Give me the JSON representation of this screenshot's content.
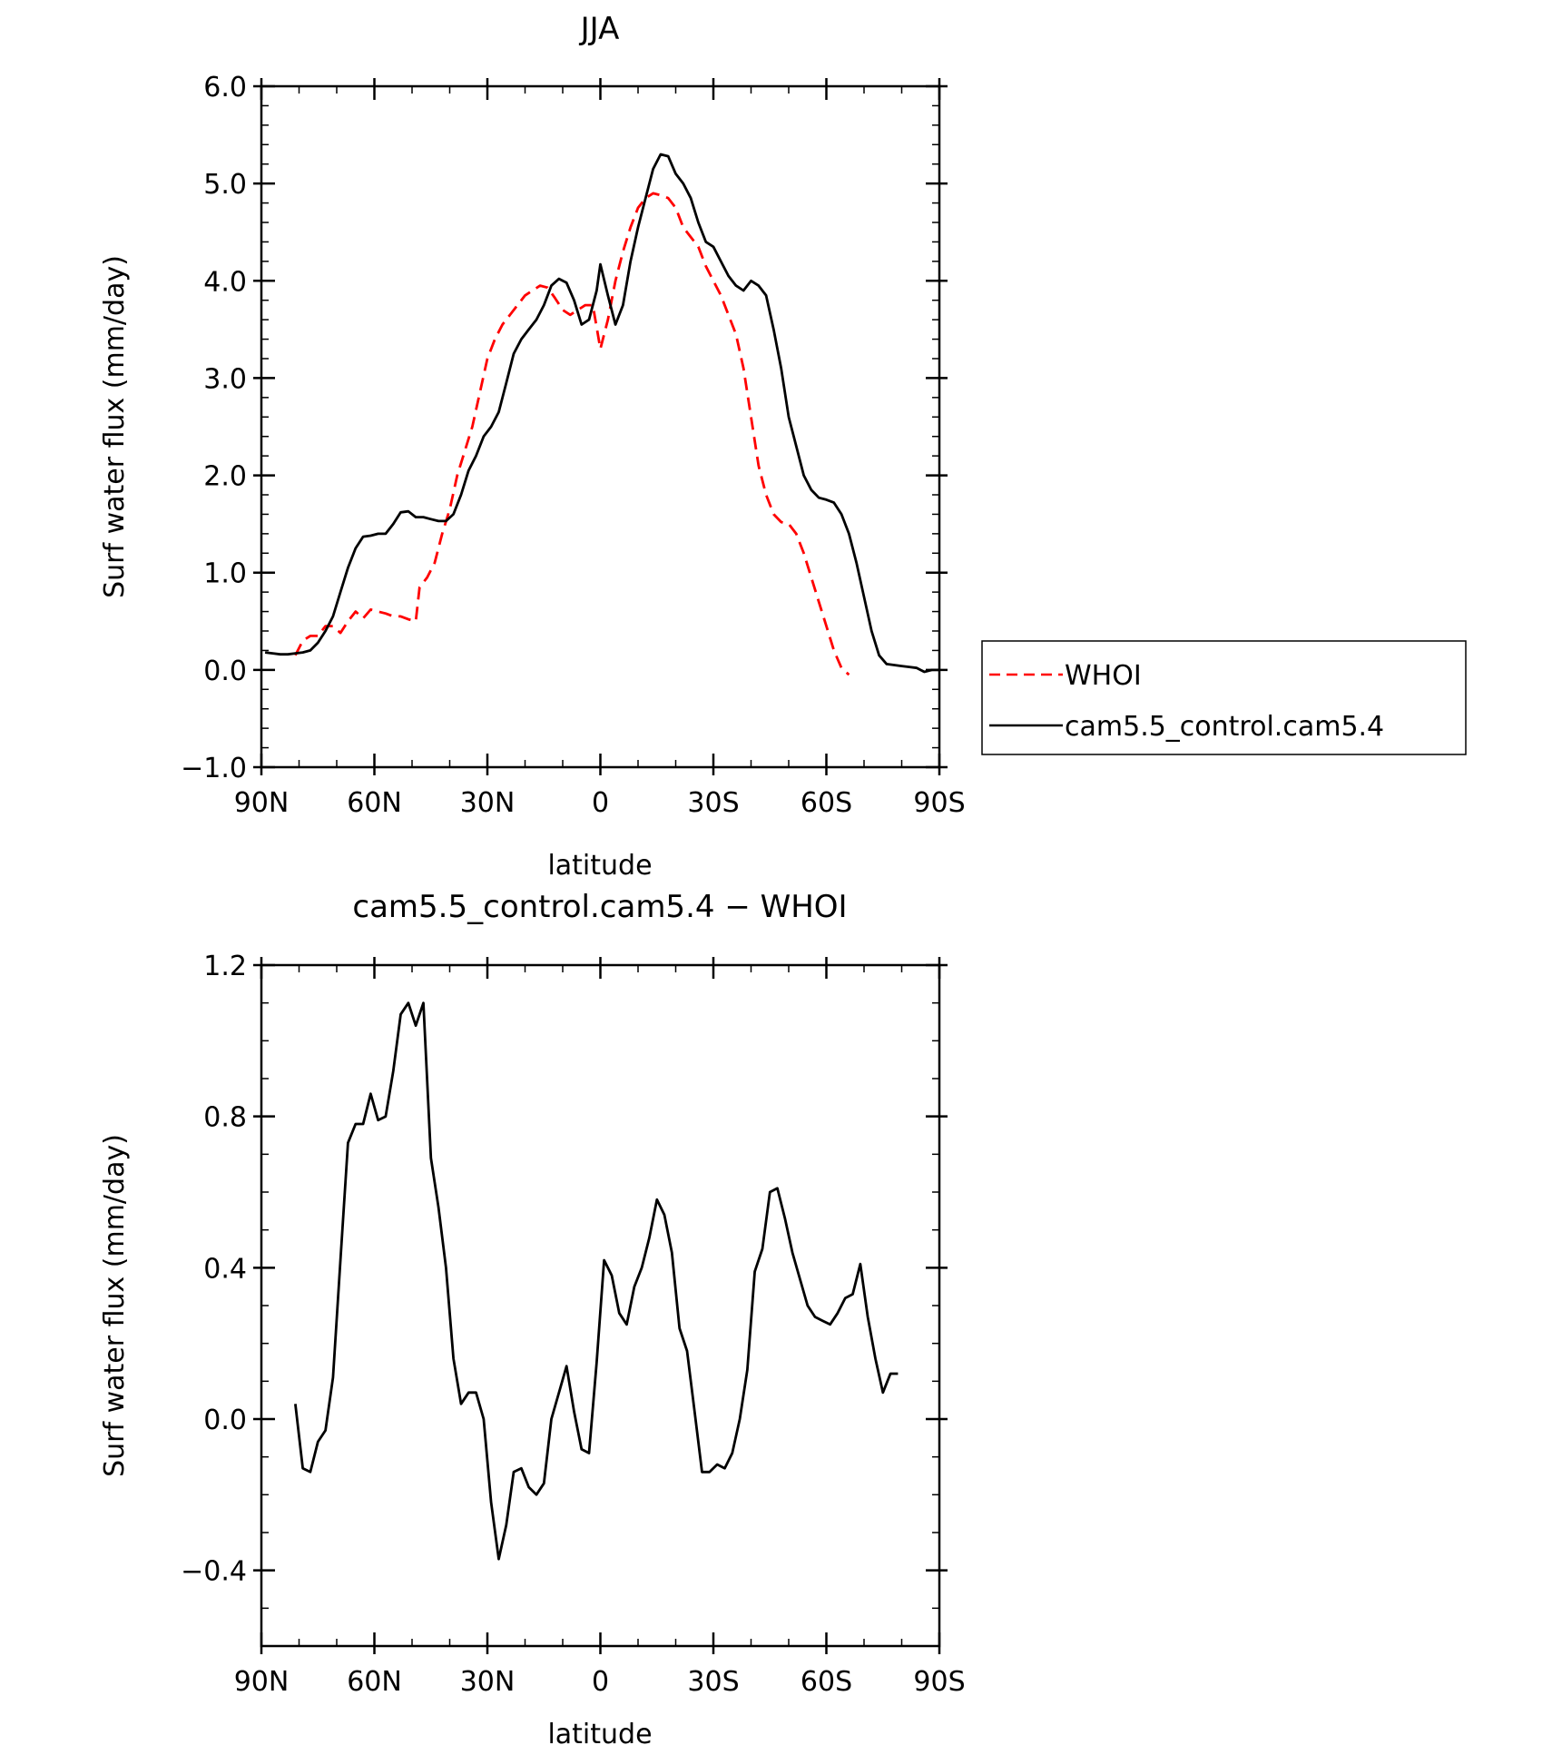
{
  "chart_data": [
    {
      "type": "line",
      "title": "JJA",
      "xlabel": "latitude",
      "ylabel": "Surf water flux (mm/day)",
      "xlim": [
        -90,
        90
      ],
      "ylim": [
        -1.0,
        6.0
      ],
      "x_tick_values": [
        -90,
        -60,
        -30,
        0,
        30,
        60,
        90
      ],
      "x_tick_labels": [
        "90N",
        "60N",
        "30N",
        "0",
        "30S",
        "60S",
        "90S"
      ],
      "y_tick_values": [
        -1.0,
        0.0,
        1.0,
        2.0,
        3.0,
        4.0,
        5.0,
        6.0
      ],
      "y_tick_labels": [
        "−1.0",
        "0.0",
        "1.0",
        "2.0",
        "3.0",
        "4.0",
        "5.0",
        "6.0"
      ],
      "legend_position": "right",
      "series": [
        {
          "name": "WHOI",
          "color": "#ff0000",
          "dash": true,
          "points": [
            [
              -81,
              0.15
            ],
            [
              -79,
              0.3
            ],
            [
              -77,
              0.35
            ],
            [
              -75,
              0.35
            ],
            [
              -73,
              0.45
            ],
            [
              -71,
              0.45
            ],
            [
              -69,
              0.38
            ],
            [
              -67,
              0.5
            ],
            [
              -65,
              0.6
            ],
            [
              -63,
              0.53
            ],
            [
              -61,
              0.62
            ],
            [
              -59,
              0.6
            ],
            [
              -57,
              0.58
            ],
            [
              -55,
              0.55
            ],
            [
              -53,
              0.55
            ],
            [
              -51,
              0.52
            ],
            [
              -49,
              0.5
            ],
            [
              -48,
              0.85
            ],
            [
              -46,
              0.95
            ],
            [
              -44,
              1.1
            ],
            [
              -42,
              1.4
            ],
            [
              -40,
              1.65
            ],
            [
              -38,
              2.0
            ],
            [
              -36,
              2.25
            ],
            [
              -34,
              2.5
            ],
            [
              -32,
              2.85
            ],
            [
              -30,
              3.2
            ],
            [
              -28,
              3.4
            ],
            [
              -26,
              3.55
            ],
            [
              -24,
              3.65
            ],
            [
              -22,
              3.75
            ],
            [
              -20,
              3.85
            ],
            [
              -18,
              3.9
            ],
            [
              -16,
              3.95
            ],
            [
              -14,
              3.93
            ],
            [
              -12,
              3.82
            ],
            [
              -10,
              3.7
            ],
            [
              -8,
              3.65
            ],
            [
              -6,
              3.7
            ],
            [
              -4,
              3.75
            ],
            [
              -2,
              3.75
            ],
            [
              0,
              3.3
            ],
            [
              2,
              3.6
            ],
            [
              4,
              4.0
            ],
            [
              6,
              4.3
            ],
            [
              8,
              4.55
            ],
            [
              10,
              4.75
            ],
            [
              12,
              4.85
            ],
            [
              14,
              4.9
            ],
            [
              16,
              4.88
            ],
            [
              18,
              4.85
            ],
            [
              20,
              4.75
            ],
            [
              22,
              4.55
            ],
            [
              24,
              4.45
            ],
            [
              26,
              4.35
            ],
            [
              28,
              4.15
            ],
            [
              30,
              4.0
            ],
            [
              32,
              3.85
            ],
            [
              34,
              3.65
            ],
            [
              36,
              3.45
            ],
            [
              38,
              3.1
            ],
            [
              40,
              2.6
            ],
            [
              42,
              2.1
            ],
            [
              44,
              1.8
            ],
            [
              46,
              1.6
            ],
            [
              48,
              1.52
            ],
            [
              50,
              1.5
            ],
            [
              52,
              1.4
            ],
            [
              54,
              1.2
            ],
            [
              56,
              0.95
            ],
            [
              58,
              0.7
            ],
            [
              60,
              0.45
            ],
            [
              62,
              0.2
            ],
            [
              64,
              0.02
            ],
            [
              66,
              -0.05
            ]
          ]
        },
        {
          "name": "cam5.5_control.cam5.4",
          "color": "#000000",
          "dash": false,
          "points": [
            [
              -89,
              0.18
            ],
            [
              -87,
              0.17
            ],
            [
              -85,
              0.16
            ],
            [
              -83,
              0.16
            ],
            [
              -81,
              0.17
            ],
            [
              -79,
              0.18
            ],
            [
              -77,
              0.2
            ],
            [
              -75,
              0.28
            ],
            [
              -73,
              0.4
            ],
            [
              -71,
              0.55
            ],
            [
              -69,
              0.8
            ],
            [
              -67,
              1.05
            ],
            [
              -65,
              1.25
            ],
            [
              -63,
              1.37
            ],
            [
              -61,
              1.38
            ],
            [
              -59,
              1.4
            ],
            [
              -57,
              1.4
            ],
            [
              -55,
              1.5
            ],
            [
              -53,
              1.62
            ],
            [
              -51,
              1.63
            ],
            [
              -49,
              1.57
            ],
            [
              -47,
              1.57
            ],
            [
              -45,
              1.55
            ],
            [
              -43,
              1.53
            ],
            [
              -41,
              1.53
            ],
            [
              -39,
              1.6
            ],
            [
              -37,
              1.8
            ],
            [
              -35,
              2.05
            ],
            [
              -33,
              2.2
            ],
            [
              -31,
              2.4
            ],
            [
              -29,
              2.5
            ],
            [
              -27,
              2.65
            ],
            [
              -25,
              2.95
            ],
            [
              -23,
              3.25
            ],
            [
              -21,
              3.4
            ],
            [
              -19,
              3.5
            ],
            [
              -17,
              3.6
            ],
            [
              -15,
              3.75
            ],
            [
              -13,
              3.95
            ],
            [
              -11,
              4.02
            ],
            [
              -9,
              3.98
            ],
            [
              -7,
              3.8
            ],
            [
              -5,
              3.55
            ],
            [
              -3,
              3.6
            ],
            [
              -1,
              3.9
            ],
            [
              0,
              4.17
            ],
            [
              2,
              3.85
            ],
            [
              4,
              3.55
            ],
            [
              6,
              3.75
            ],
            [
              8,
              4.2
            ],
            [
              10,
              4.55
            ],
            [
              12,
              4.85
            ],
            [
              14,
              5.15
            ],
            [
              16,
              5.3
            ],
            [
              18,
              5.28
            ],
            [
              20,
              5.1
            ],
            [
              22,
              5.0
            ],
            [
              24,
              4.85
            ],
            [
              26,
              4.6
            ],
            [
              28,
              4.4
            ],
            [
              30,
              4.35
            ],
            [
              32,
              4.2
            ],
            [
              34,
              4.05
            ],
            [
              36,
              3.95
            ],
            [
              38,
              3.9
            ],
            [
              40,
              4.0
            ],
            [
              42,
              3.95
            ],
            [
              44,
              3.85
            ],
            [
              46,
              3.5
            ],
            [
              48,
              3.1
            ],
            [
              50,
              2.6
            ],
            [
              52,
              2.3
            ],
            [
              54,
              2.0
            ],
            [
              56,
              1.85
            ],
            [
              58,
              1.77
            ],
            [
              60,
              1.75
            ],
            [
              62,
              1.72
            ],
            [
              64,
              1.6
            ],
            [
              66,
              1.4
            ],
            [
              68,
              1.1
            ],
            [
              70,
              0.75
            ],
            [
              72,
              0.4
            ],
            [
              74,
              0.15
            ],
            [
              76,
              0.06
            ],
            [
              78,
              0.05
            ],
            [
              80,
              0.04
            ],
            [
              82,
              0.03
            ],
            [
              84,
              0.02
            ],
            [
              86,
              -0.02
            ],
            [
              88,
              0.0
            ],
            [
              90,
              0.0
            ]
          ]
        }
      ]
    },
    {
      "type": "line",
      "title": "cam5.5_control.cam5.4 − WHOI",
      "xlabel": "latitude",
      "ylabel": "Surf water flux (mm/day)",
      "xlim": [
        -90,
        90
      ],
      "ylim": [
        -0.6,
        1.2
      ],
      "x_tick_values": [
        -90,
        -60,
        -30,
        0,
        30,
        60,
        90
      ],
      "x_tick_labels": [
        "90N",
        "60N",
        "30N",
        "0",
        "30S",
        "60S",
        "90S"
      ],
      "y_tick_values": [
        -0.4,
        0.0,
        0.4,
        0.8,
        1.2
      ],
      "y_tick_labels": [
        "−0.4",
        "0.0",
        "0.4",
        "0.8",
        "1.2"
      ],
      "series": [
        {
          "name": "cam5.5_control.cam5.4 - WHOI",
          "color": "#000000",
          "dash": false,
          "points": [
            [
              -81,
              0.04
            ],
            [
              -79,
              -0.13
            ],
            [
              -77,
              -0.14
            ],
            [
              -75,
              -0.06
            ],
            [
              -73,
              -0.03
            ],
            [
              -71,
              0.11
            ],
            [
              -69,
              0.42
            ],
            [
              -67,
              0.73
            ],
            [
              -65,
              0.78
            ],
            [
              -63,
              0.78
            ],
            [
              -61,
              0.86
            ],
            [
              -59,
              0.79
            ],
            [
              -57,
              0.8
            ],
            [
              -55,
              0.92
            ],
            [
              -53,
              1.07
            ],
            [
              -51,
              1.1
            ],
            [
              -49,
              1.04
            ],
            [
              -47,
              1.1
            ],
            [
              -45,
              0.69
            ],
            [
              -43,
              0.56
            ],
            [
              -41,
              0.4
            ],
            [
              -39,
              0.16
            ],
            [
              -37,
              0.04
            ],
            [
              -35,
              0.07
            ],
            [
              -33,
              0.07
            ],
            [
              -31,
              0.0
            ],
            [
              -29,
              -0.22
            ],
            [
              -27,
              -0.37
            ],
            [
              -25,
              -0.28
            ],
            [
              -23,
              -0.14
            ],
            [
              -21,
              -0.13
            ],
            [
              -19,
              -0.18
            ],
            [
              -17,
              -0.2
            ],
            [
              -15,
              -0.17
            ],
            [
              -13,
              0.0
            ],
            [
              -11,
              0.07
            ],
            [
              -9,
              0.14
            ],
            [
              -7,
              0.02
            ],
            [
              -5,
              -0.08
            ],
            [
              -3,
              -0.09
            ],
            [
              -1,
              0.15
            ],
            [
              1,
              0.42
            ],
            [
              3,
              0.38
            ],
            [
              5,
              0.28
            ],
            [
              7,
              0.25
            ],
            [
              9,
              0.35
            ],
            [
              11,
              0.4
            ],
            [
              13,
              0.48
            ],
            [
              15,
              0.58
            ],
            [
              17,
              0.54
            ],
            [
              19,
              0.44
            ],
            [
              21,
              0.24
            ],
            [
              23,
              0.18
            ],
            [
              25,
              0.02
            ],
            [
              27,
              -0.14
            ],
            [
              29,
              -0.14
            ],
            [
              31,
              -0.12
            ],
            [
              33,
              -0.13
            ],
            [
              35,
              -0.09
            ],
            [
              37,
              0.0
            ],
            [
              39,
              0.13
            ],
            [
              41,
              0.39
            ],
            [
              43,
              0.45
            ],
            [
              45,
              0.6
            ],
            [
              47,
              0.61
            ],
            [
              49,
              0.53
            ],
            [
              51,
              0.44
            ],
            [
              53,
              0.37
            ],
            [
              55,
              0.3
            ],
            [
              57,
              0.27
            ],
            [
              59,
              0.26
            ],
            [
              61,
              0.25
            ],
            [
              63,
              0.28
            ],
            [
              65,
              0.32
            ],
            [
              67,
              0.33
            ],
            [
              69,
              0.41
            ],
            [
              71,
              0.27
            ],
            [
              73,
              0.16
            ],
            [
              75,
              0.07
            ],
            [
              77,
              0.12
            ],
            [
              79,
              0.12
            ]
          ]
        }
      ]
    }
  ]
}
